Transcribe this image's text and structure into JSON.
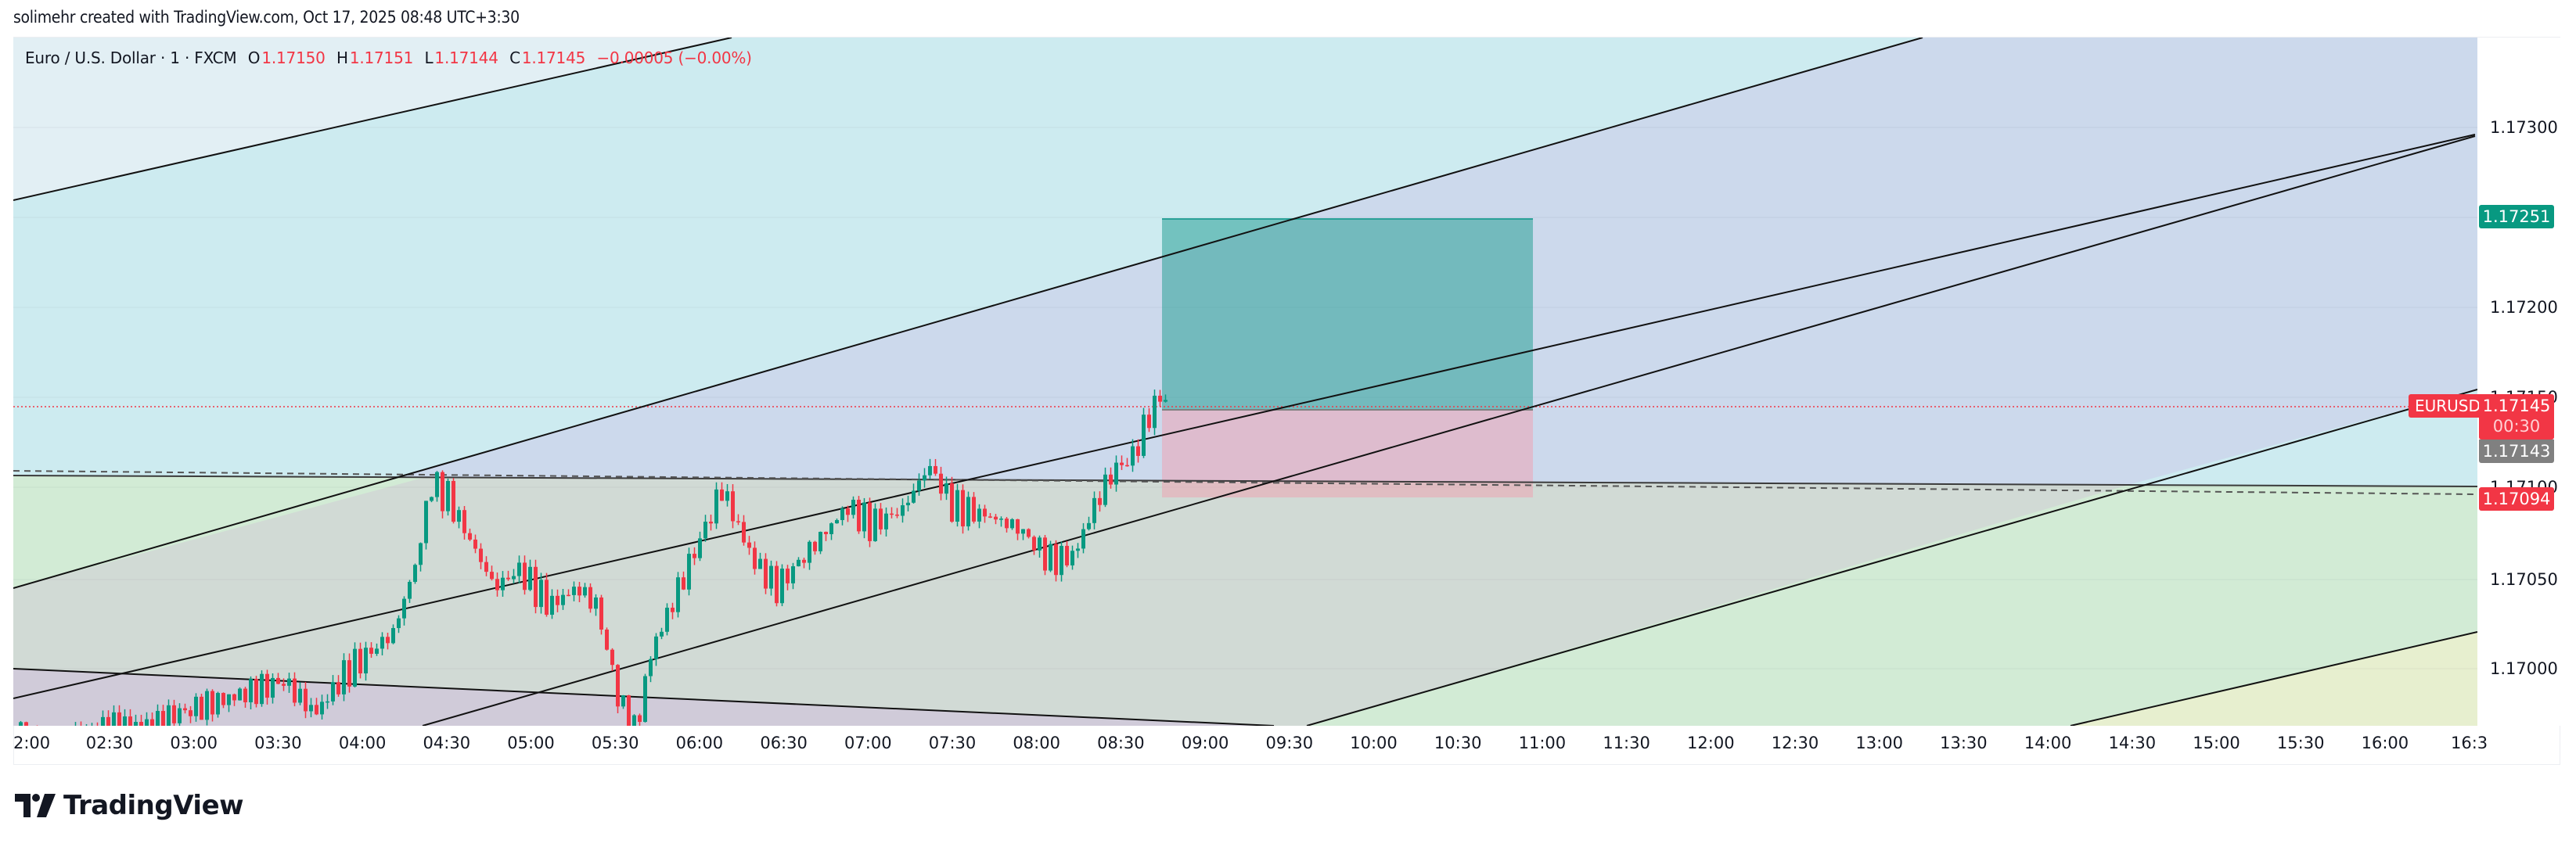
{
  "header": {
    "credit": "solimehr created with TradingView.com, Oct 17, 2025 08:48 UTC+3:30"
  },
  "legend": {
    "symbol": "Euro / U.S. Dollar · 1 · FXCM",
    "open_label": "O",
    "open": "1.17150",
    "high_label": "H",
    "high": "1.17151",
    "low_label": "L",
    "low": "1.17144",
    "close_label": "C",
    "close": "1.17145",
    "change": "−0.00005 (−0.00%)"
  },
  "price_axis": {
    "labels": [
      {
        "text": "1.17300",
        "y": 163
      },
      {
        "text": "1.17200",
        "y": 393
      },
      {
        "text": "1.17150",
        "y": 508
      },
      {
        "text": "1.17100",
        "y": 623
      },
      {
        "text": "1.17050",
        "y": 741
      },
      {
        "text": "1.17000",
        "y": 855
      }
    ],
    "tags": {
      "take_profit": {
        "text": "1.17251",
        "color": "#089981",
        "y": 277
      },
      "last_price": {
        "text": "1.17145",
        "countdown": "00:30",
        "color": "#f23645",
        "y": 520
      },
      "entry": {
        "text": "1.17143",
        "color": "#808080",
        "y": 576
      },
      "stop_loss": {
        "text": "1.17094",
        "color": "#f23645",
        "y": 638
      }
    },
    "symbol_tag": "EURUSD"
  },
  "time_axis": {
    "labels": [
      "2:00",
      "02:30",
      "03:00",
      "03:30",
      "04:00",
      "04:30",
      "05:00",
      "05:30",
      "06:00",
      "06:30",
      "07:00",
      "07:30",
      "08:00",
      "08:30",
      "09:00",
      "09:30",
      "10:00",
      "10:30",
      "11:00",
      "11:30",
      "12:00",
      "12:30",
      "13:00",
      "13:30",
      "14:00",
      "14:30",
      "15:00",
      "15:30",
      "16:00",
      "16:3"
    ]
  },
  "brand": {
    "logo_text": "TradingView"
  },
  "colors": {
    "up": "#089981",
    "down": "#f23645",
    "tp_fill": "#5fb8b0",
    "sl_fill": "#e0a8b8"
  },
  "chart_data": {
    "type": "candlestick",
    "title": "Euro / U.S. Dollar · 1 · FXCM",
    "symbol": "EURUSD",
    "timeframe": "1",
    "x": [
      "02:00",
      "02:30",
      "03:00",
      "03:30",
      "04:00",
      "04:30",
      "05:00",
      "05:30",
      "06:00",
      "06:30",
      "07:00",
      "07:30",
      "08:00",
      "08:30",
      "08:45"
    ],
    "close_approx": [
      1.16985,
      1.1699,
      1.16992,
      1.16995,
      1.1702,
      1.171,
      1.1706,
      1.16975,
      1.1709,
      1.1708,
      1.17095,
      1.17085,
      1.1707,
      1.1711,
      1.17145
    ],
    "ohlc_last": {
      "open": 1.1715,
      "high": 1.17151,
      "low": 1.17144,
      "close": 1.17145,
      "change": -5e-05,
      "change_pct": "-0.00%"
    },
    "ylim": [
      1.16965,
      1.17355
    ],
    "y_ticks": [
      1.17,
      1.1705,
      1.171,
      1.1715,
      1.172,
      1.173
    ],
    "annotations": {
      "long_position": {
        "entry": 1.17143,
        "take_profit": 1.17251,
        "stop_loss": 1.17094,
        "start": "08:45",
        "end": "11:00"
      },
      "last_price": 1.17145,
      "countdown": "00:30"
    },
    "grid": true,
    "legend_position": "top-left"
  }
}
